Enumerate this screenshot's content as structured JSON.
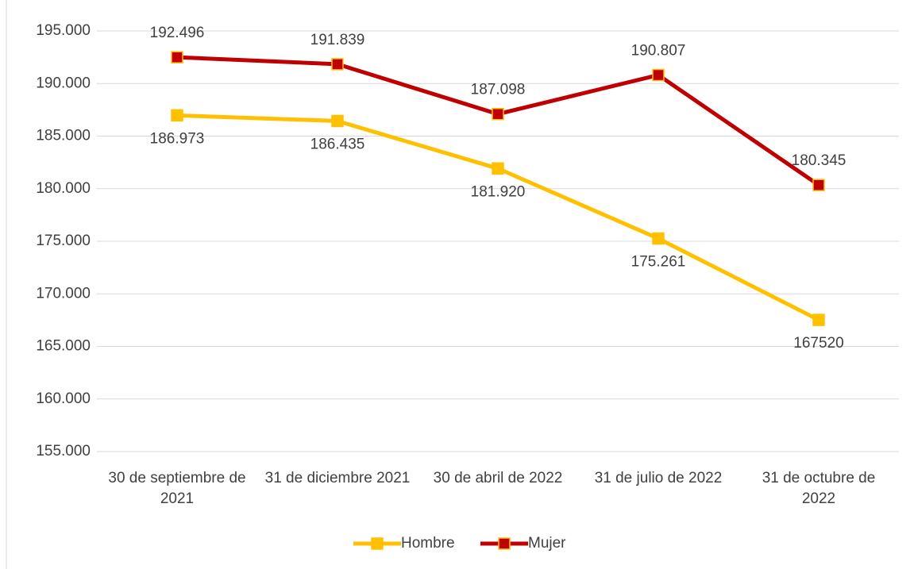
{
  "chart_data": {
    "type": "line",
    "categories": [
      "30 de septiembre de 2021",
      "31 de diciembre 2021",
      "30 de abril de 2022",
      "31 de julio de 2022",
      "31 de octubre de 2022"
    ],
    "series": [
      {
        "name": "Hombre",
        "color": "#ffc000",
        "values": [
          186973,
          186435,
          181920,
          175261,
          167520
        ],
        "value_labels": [
          "186.973",
          "186.435",
          "181.920",
          "175.261",
          "167520"
        ]
      },
      {
        "name": "Mujer",
        "color": "#c00000",
        "values": [
          192496,
          191839,
          187098,
          190807,
          180345
        ],
        "value_labels": [
          "192.496",
          "191.839",
          "187.098",
          "190.807",
          "180.345"
        ]
      }
    ],
    "ylim": [
      155000,
      195000
    ],
    "yticks": [
      {
        "value": 155000,
        "label": "155.000"
      },
      {
        "value": 160000,
        "label": "160.000"
      },
      {
        "value": 165000,
        "label": "165.000"
      },
      {
        "value": 170000,
        "label": "170.000"
      },
      {
        "value": 175000,
        "label": "175.000"
      },
      {
        "value": 180000,
        "label": "180.000"
      },
      {
        "value": 185000,
        "label": "185.000"
      },
      {
        "value": 190000,
        "label": "190.000"
      },
      {
        "value": 195000,
        "label": "195.000"
      }
    ],
    "grid": true,
    "legend": "bottom"
  }
}
